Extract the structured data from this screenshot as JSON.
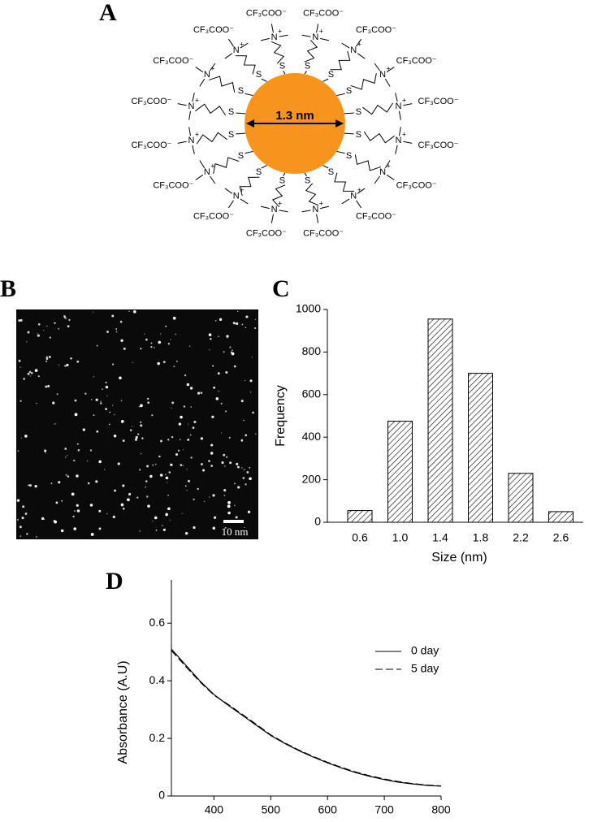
{
  "panels": {
    "a": "A",
    "b": "B",
    "c": "C",
    "d": "D"
  },
  "diagram": {
    "core_label": "1.3 nm",
    "ligands": [
      {
        "s": "S",
        "n": "N",
        "charge": "+",
        "ion": "CF₃COO⁻"
      },
      {
        "s": "S",
        "n": "N",
        "charge": "+",
        "ion": "CF₃COO⁻"
      },
      {
        "s": "S",
        "n": "N",
        "charge": "+",
        "ion": "CF₃COO⁻"
      },
      {
        "s": "S",
        "n": "N",
        "charge": "+",
        "ion": "CF₃COO⁻"
      },
      {
        "s": "S",
        "n": "N",
        "charge": "+",
        "ion": "CF₃COO⁻"
      },
      {
        "s": "S",
        "n": "N",
        "charge": "+",
        "ion": "CF₃COO⁻"
      },
      {
        "s": "S",
        "n": "N",
        "charge": "+",
        "ion": "CF₃COO⁻"
      },
      {
        "s": "S",
        "n": "N",
        "charge": "+",
        "ion": "CF₃COO⁻"
      },
      {
        "s": "S",
        "n": "N",
        "charge": "+",
        "ion": "CF₃COO⁻"
      },
      {
        "s": "S",
        "n": "N",
        "charge": "+",
        "ion": "CF₃COO⁻"
      },
      {
        "s": "S",
        "n": "N",
        "charge": "+",
        "ion": "CF₃COO⁻"
      },
      {
        "s": "S",
        "n": "N",
        "charge": "+",
        "ion": "CF₃COO⁻"
      },
      {
        "s": "S",
        "n": "N",
        "charge": "+",
        "ion": "CF₃COO⁻"
      },
      {
        "s": "S",
        "n": "N",
        "charge": "+",
        "ion": "CF₃COO⁻"
      },
      {
        "s": "S",
        "n": "N",
        "charge": "+",
        "ion": "CF₃COO⁻"
      },
      {
        "s": "S",
        "n": "N",
        "charge": "+",
        "ion": "CF₃COO⁻"
      }
    ]
  },
  "micrograph": {
    "scale_bar": "10 nm"
  },
  "chart_data": [
    {
      "type": "bar",
      "x_label": "Size (nm)",
      "y_label": "Frequency",
      "categories": [
        "0.6",
        "1.0",
        "1.4",
        "1.8",
        "2.2",
        "2.6"
      ],
      "values": [
        55,
        475,
        955,
        700,
        230,
        50
      ],
      "color": "#ffffff",
      "hatch": true,
      "ylim": [
        0,
        1000
      ],
      "yticks": [
        0,
        200,
        400,
        600,
        800,
        1000
      ]
    },
    {
      "type": "line",
      "y_label": "Absorbance (A.U)",
      "x": [
        325,
        350,
        375,
        400,
        425,
        450,
        475,
        500,
        525,
        550,
        575,
        600,
        625,
        650,
        675,
        700,
        725,
        750,
        775,
        800
      ],
      "series": [
        {
          "name": "0 day",
          "color": "#000000",
          "dash": "solid",
          "values": [
            0.51,
            0.455,
            0.4,
            0.352,
            0.315,
            0.28,
            0.245,
            0.21,
            0.182,
            0.157,
            0.135,
            0.115,
            0.097,
            0.081,
            0.068,
            0.057,
            0.048,
            0.042,
            0.037,
            0.034
          ]
        },
        {
          "name": "5 day",
          "color": "#000000",
          "dash": "dashed",
          "values": [
            0.505,
            0.45,
            0.397,
            0.35,
            0.318,
            0.283,
            0.248,
            0.212,
            0.184,
            0.159,
            0.137,
            0.117,
            0.099,
            0.083,
            0.07,
            0.059,
            0.05,
            0.043,
            0.038,
            0.035
          ]
        }
      ],
      "xlim": [
        325,
        800
      ],
      "ylim": [
        0,
        0.75
      ],
      "xticks": [
        400,
        500,
        600,
        700,
        800
      ],
      "yticks": [
        0,
        0.2,
        0.4,
        0.6
      ],
      "legend": "upper right"
    }
  ]
}
